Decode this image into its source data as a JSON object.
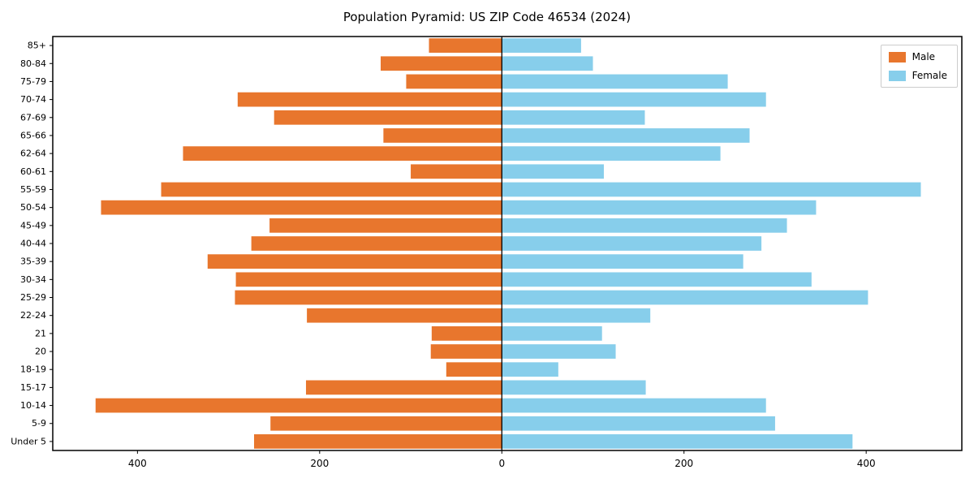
{
  "figure": {
    "title": "Population Pyramid: US ZIP Code 46534 (2024)"
  },
  "legend": {
    "male_label": "Male",
    "female_label": "Female"
  },
  "colors": {
    "male": "#e8762d",
    "female": "#87ceeb",
    "axis": "#000000",
    "background": "#ffffff",
    "legend_border": "#cccccc"
  },
  "chart_data": {
    "type": "bar",
    "subtype": "population-pyramid",
    "orientation": "horizontal",
    "title": "Population Pyramid: US ZIP Code 46534 (2024)",
    "categories": [
      "85+",
      "80-84",
      "75-79",
      "70-74",
      "67-69",
      "65-66",
      "62-64",
      "60-61",
      "55-59",
      "50-54",
      "45-49",
      "40-44",
      "35-39",
      "30-34",
      "25-29",
      "22-24",
      "21",
      "20",
      "18-19",
      "15-17",
      "10-14",
      "5-9",
      "Under 5"
    ],
    "categories_order": "top-to-bottom",
    "series": [
      {
        "name": "Male",
        "side": "left",
        "color": "#e8762d",
        "values": [
          80,
          133,
          105,
          290,
          250,
          130,
          350,
          100,
          374,
          440,
          255,
          275,
          323,
          292,
          293,
          214,
          77,
          78,
          61,
          215,
          446,
          254,
          272
        ]
      },
      {
        "name": "Female",
        "side": "right",
        "color": "#87ceeb",
        "values": [
          87,
          100,
          248,
          290,
          157,
          272,
          240,
          112,
          460,
          345,
          313,
          285,
          265,
          340,
          402,
          163,
          110,
          125,
          62,
          158,
          290,
          300,
          385
        ]
      }
    ],
    "xlim": [
      -493,
      505
    ],
    "x_ticks": [
      -400,
      -200,
      0,
      200,
      400
    ],
    "x_tick_labels": [
      "400",
      "200",
      "0",
      "200",
      "400"
    ],
    "xlabel": "",
    "ylabel": "",
    "grid": false,
    "legend_position": "upper right"
  }
}
